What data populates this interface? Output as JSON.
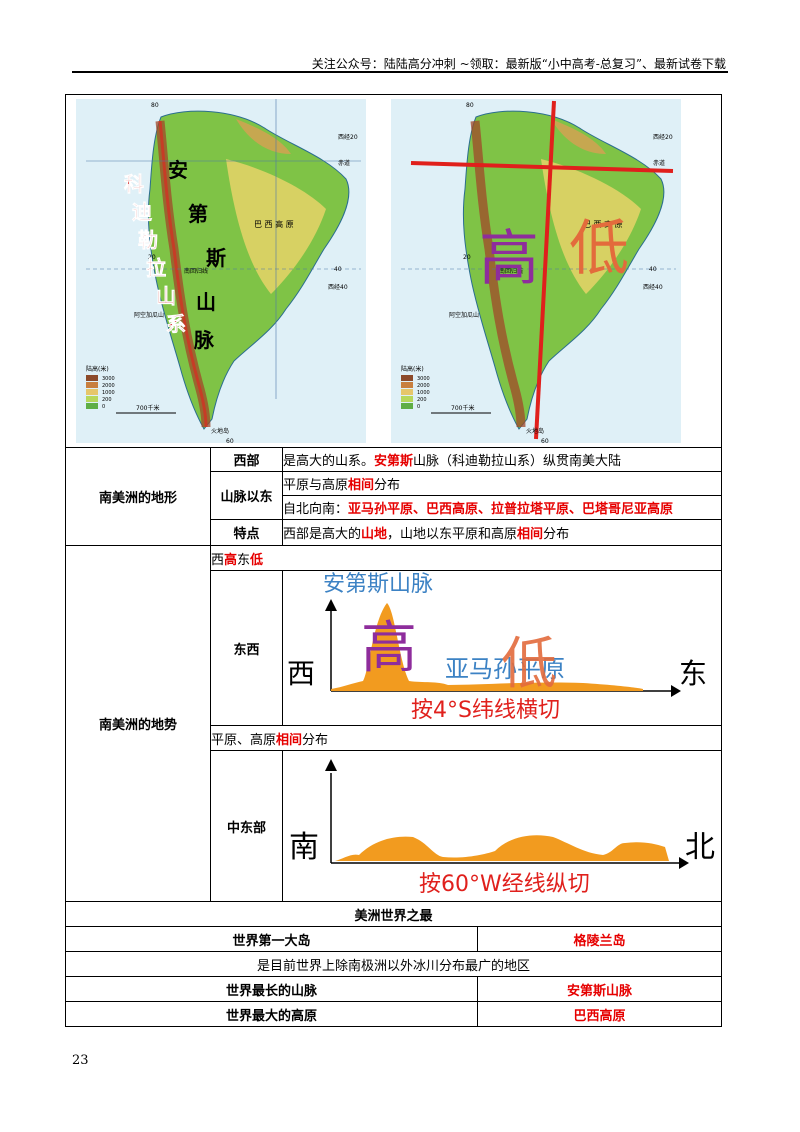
{
  "header": {
    "text": "关注公众号：陆陆高分冲刺 ~领取：最新版“小中高考-总复习”、最新试卷下载"
  },
  "page_number": "23",
  "maps": {
    "left": {
      "title_vertical": [
        "安",
        "第",
        "斯",
        "山",
        "脉"
      ],
      "red_vertical": [
        "科",
        "迪",
        "勒",
        "拉",
        "山",
        "系"
      ],
      "labels": [
        "巴 西 高 原",
        "阿空加瓜山",
        "火地岛",
        "南回归线",
        "赤道",
        "西经40",
        "西经20",
        "陆高(米)"
      ],
      "legend": [
        "3000",
        "2000",
        "1000",
        "200",
        "0"
      ],
      "scale": "700千米",
      "lat_marks": [
        "80",
        "20",
        "40",
        "60"
      ]
    },
    "right": {
      "big_high": "高",
      "big_low": "低",
      "labels": [
        "巴 西 高 原",
        "阿空加瓜山",
        "火地岛",
        "南回归线",
        "赤道",
        "西经40",
        "西经20",
        "陆高(米)"
      ],
      "legend": [
        "3000",
        "2000",
        "1000",
        "200",
        "0"
      ],
      "scale": "700千米",
      "lat_marks": [
        "80",
        "20",
        "40",
        "60"
      ]
    }
  },
  "landform": {
    "label": "南美洲的地形",
    "west_label": "西部",
    "west_pre": "是高大的山系。",
    "west_red": "安第斯",
    "west_post": "山脉（科迪勒拉山系）纵贯南美大陆",
    "east_label": "山脉以东",
    "east_line1_pre": "平原与高原",
    "east_line1_red": "相间",
    "east_line1_post": "分布",
    "east_line2_pre": "自北向南：",
    "east_line2_red": "亚马孙平原、巴西高原、拉普拉塔平原、巴塔哥尼亚高原",
    "feature_label": "特点",
    "feature_pre": "西部是高大的",
    "feature_red1": "山地",
    "feature_mid": "，山地以东平原和高原",
    "feature_red2": "相间",
    "feature_post": "分布"
  },
  "terrain": {
    "label": "南美洲的地势",
    "trend_pre": "西",
    "trend_red1": "高",
    "trend_mid": "东",
    "trend_red2": "低",
    "ew_label": "东西",
    "ew_chart": {
      "mountain": "安第斯山脉",
      "high": "高",
      "plain": "亚马孙平原",
      "low": "低",
      "west": "西",
      "east": "东",
      "cut": "按4°S纬线横切"
    },
    "mid_pre": "平原、高原",
    "mid_red": "相间",
    "mid_post": "分布",
    "ns_label": "中东部",
    "ns_chart": {
      "south": "南",
      "north": "北",
      "cut": "按60°W经线纵切"
    }
  },
  "world": {
    "title": "美洲世界之最",
    "rows": [
      {
        "label": "世界第一大岛",
        "value": "格陵兰岛"
      },
      {
        "note": "是目前世界上除南极洲以外冰川分布最广的地区"
      },
      {
        "label": "世界最长的山脉",
        "value": "安第斯山脉"
      },
      {
        "label": "世界最大的高原",
        "value": "巴西高原"
      }
    ]
  }
}
